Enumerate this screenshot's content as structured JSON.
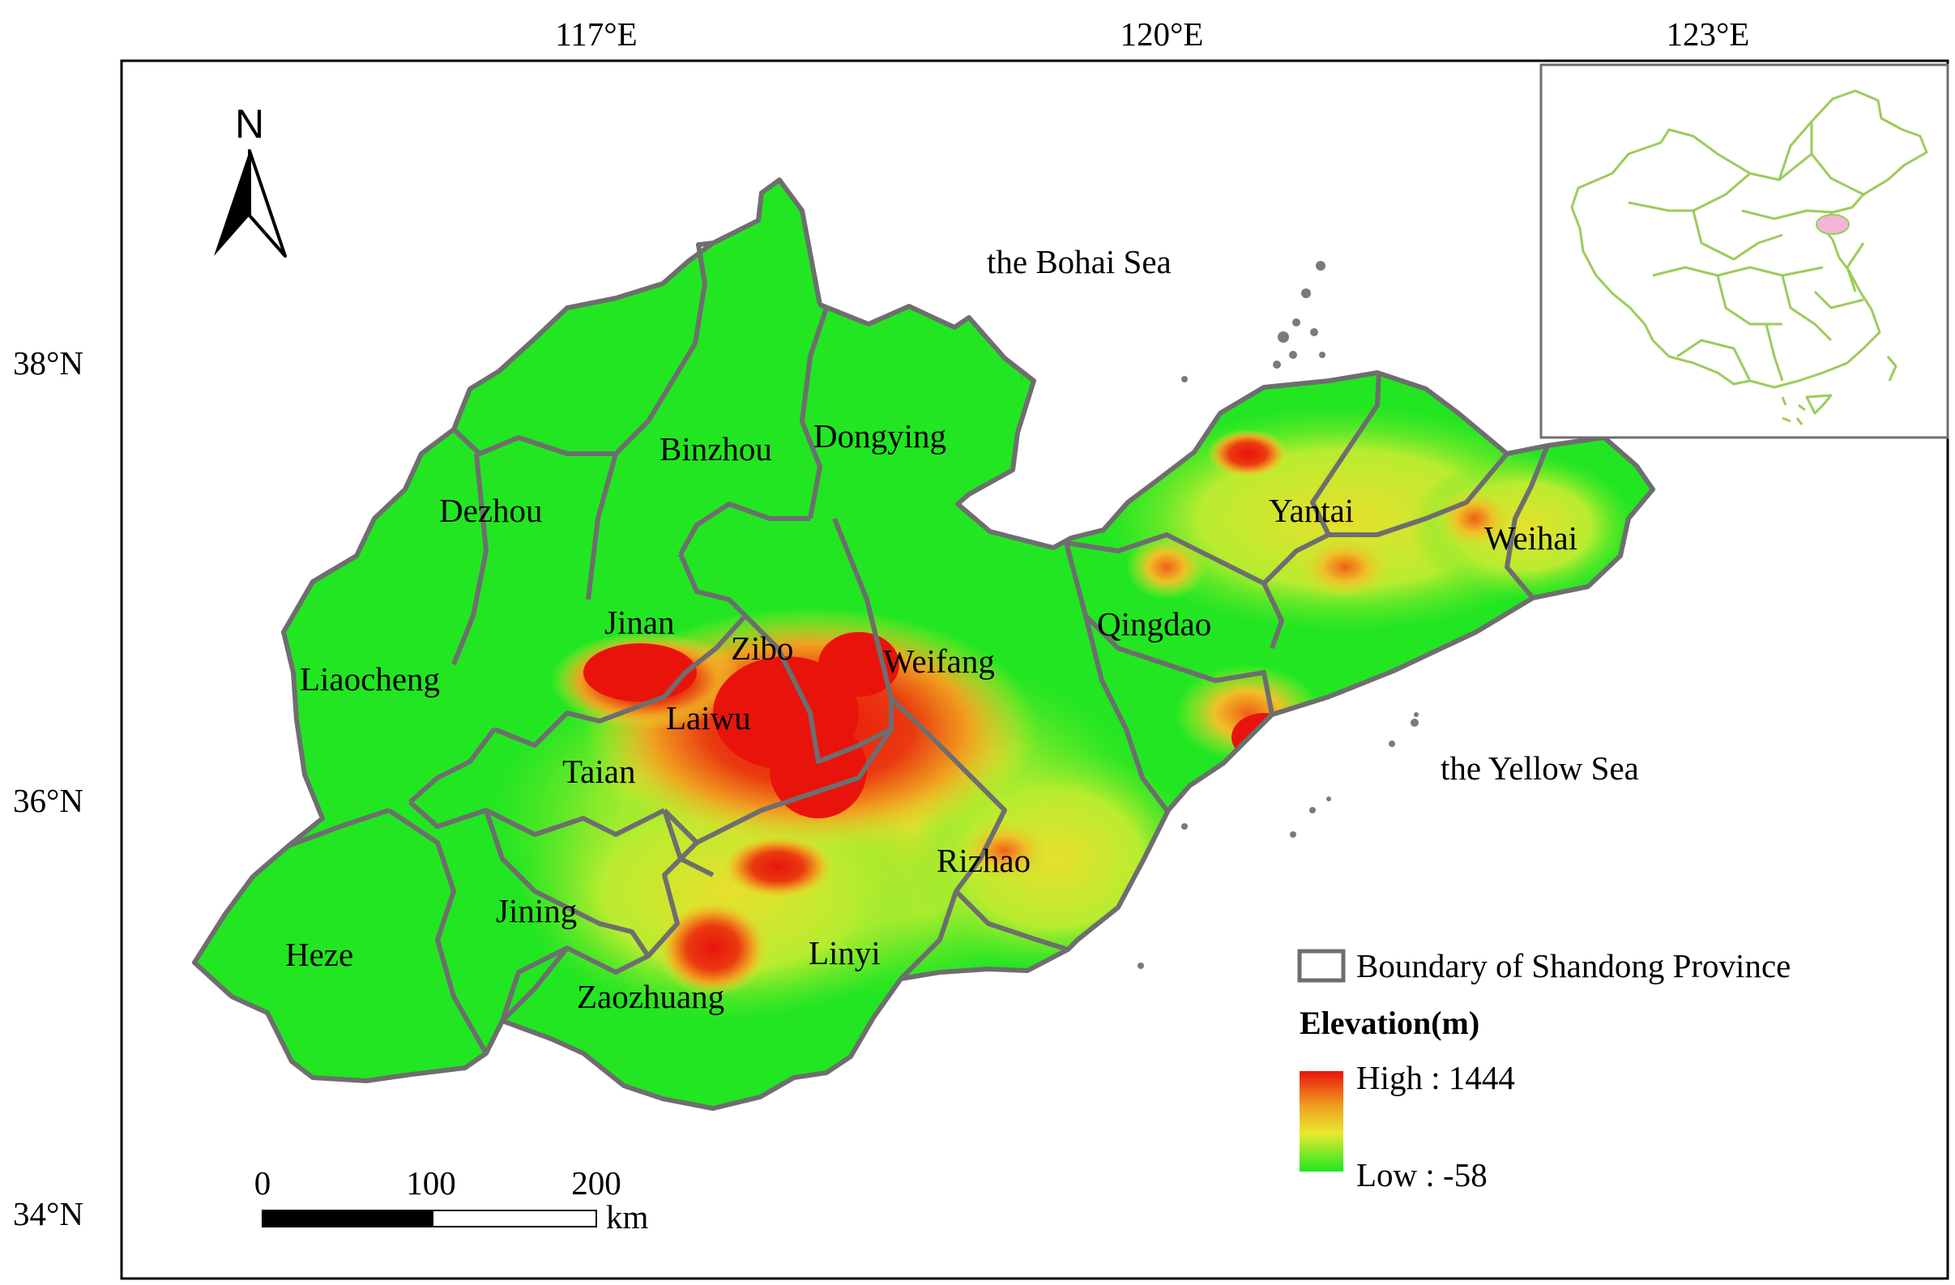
{
  "longitude_labels": [
    "117°E",
    "120°E",
    "123°E"
  ],
  "latitude_labels": [
    "38°N",
    "36°N",
    "34°N"
  ],
  "north_arrow_label": "N",
  "seas": [
    "the Bohai Sea",
    "the Yellow Sea"
  ],
  "cities": [
    "Binzhou",
    "Dongying",
    "Dezhou",
    "Yantai",
    "Weihai",
    "Jinan",
    "Zibo",
    "Weifang",
    "Qingdao",
    "Liaocheng",
    "Laiwu",
    "Taian",
    "Rizhao",
    "Jining",
    "Linyi",
    "Heze",
    "Zaozhuang"
  ],
  "legend": {
    "boundary_label": "Boundary of Shandong Province",
    "title": "Elevation(m)",
    "high_label": "High : 1444",
    "low_label": "Low : -58",
    "high_value": 1444,
    "low_value": -58,
    "ramp_colors": [
      "#e8140c",
      "#f0a020",
      "#e8e830",
      "#20e820"
    ]
  },
  "scale_bar": {
    "ticks": [
      "0",
      "100",
      "200"
    ],
    "unit": "km"
  },
  "colors": {
    "lowland": "#22e622",
    "upland": "#e4e22a",
    "mountain": "#e8140c",
    "boundary": "#6e6e6e",
    "inset_outline": "#9ccc5a",
    "inset_highlight": "#f4b4d8",
    "islands": "#7a7a7a"
  }
}
